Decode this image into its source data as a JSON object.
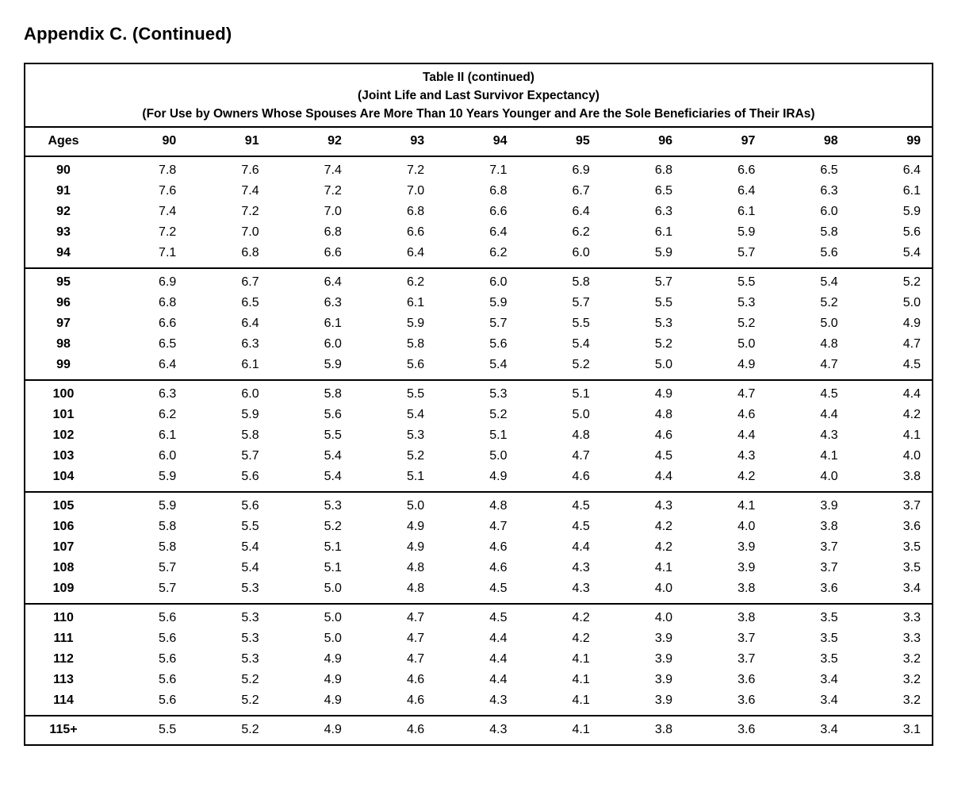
{
  "page_title": "Appendix C. (Continued)",
  "colors": {
    "text": "#000000",
    "background": "#ffffff",
    "border": "#000000"
  },
  "table": {
    "title_lines": [
      "Table II (continued)",
      "(Joint Life and Last Survivor Expectancy)",
      "(For Use by Owners Whose Spouses Are More Than 10 Years Younger and Are the Sole Beneficiaries of Their IRAs)"
    ],
    "columns": [
      "Ages",
      "90",
      "91",
      "92",
      "93",
      "94",
      "95",
      "96",
      "97",
      "98",
      "99"
    ],
    "groups": [
      {
        "rows": [
          {
            "age": "90",
            "values": [
              "7.8",
              "7.6",
              "7.4",
              "7.2",
              "7.1",
              "6.9",
              "6.8",
              "6.6",
              "6.5",
              "6.4"
            ]
          },
          {
            "age": "91",
            "values": [
              "7.6",
              "7.4",
              "7.2",
              "7.0",
              "6.8",
              "6.7",
              "6.5",
              "6.4",
              "6.3",
              "6.1"
            ]
          },
          {
            "age": "92",
            "values": [
              "7.4",
              "7.2",
              "7.0",
              "6.8",
              "6.6",
              "6.4",
              "6.3",
              "6.1",
              "6.0",
              "5.9"
            ]
          },
          {
            "age": "93",
            "values": [
              "7.2",
              "7.0",
              "6.8",
              "6.6",
              "6.4",
              "6.2",
              "6.1",
              "5.9",
              "5.8",
              "5.6"
            ]
          },
          {
            "age": "94",
            "values": [
              "7.1",
              "6.8",
              "6.6",
              "6.4",
              "6.2",
              "6.0",
              "5.9",
              "5.7",
              "5.6",
              "5.4"
            ]
          }
        ]
      },
      {
        "rows": [
          {
            "age": "95",
            "values": [
              "6.9",
              "6.7",
              "6.4",
              "6.2",
              "6.0",
              "5.8",
              "5.7",
              "5.5",
              "5.4",
              "5.2"
            ]
          },
          {
            "age": "96",
            "values": [
              "6.8",
              "6.5",
              "6.3",
              "6.1",
              "5.9",
              "5.7",
              "5.5",
              "5.3",
              "5.2",
              "5.0"
            ]
          },
          {
            "age": "97",
            "values": [
              "6.6",
              "6.4",
              "6.1",
              "5.9",
              "5.7",
              "5.5",
              "5.3",
              "5.2",
              "5.0",
              "4.9"
            ]
          },
          {
            "age": "98",
            "values": [
              "6.5",
              "6.3",
              "6.0",
              "5.8",
              "5.6",
              "5.4",
              "5.2",
              "5.0",
              "4.8",
              "4.7"
            ]
          },
          {
            "age": "99",
            "values": [
              "6.4",
              "6.1",
              "5.9",
              "5.6",
              "5.4",
              "5.2",
              "5.0",
              "4.9",
              "4.7",
              "4.5"
            ]
          }
        ]
      },
      {
        "rows": [
          {
            "age": "100",
            "values": [
              "6.3",
              "6.0",
              "5.8",
              "5.5",
              "5.3",
              "5.1",
              "4.9",
              "4.7",
              "4.5",
              "4.4"
            ]
          },
          {
            "age": "101",
            "values": [
              "6.2",
              "5.9",
              "5.6",
              "5.4",
              "5.2",
              "5.0",
              "4.8",
              "4.6",
              "4.4",
              "4.2"
            ]
          },
          {
            "age": "102",
            "values": [
              "6.1",
              "5.8",
              "5.5",
              "5.3",
              "5.1",
              "4.8",
              "4.6",
              "4.4",
              "4.3",
              "4.1"
            ]
          },
          {
            "age": "103",
            "values": [
              "6.0",
              "5.7",
              "5.4",
              "5.2",
              "5.0",
              "4.7",
              "4.5",
              "4.3",
              "4.1",
              "4.0"
            ]
          },
          {
            "age": "104",
            "values": [
              "5.9",
              "5.6",
              "5.4",
              "5.1",
              "4.9",
              "4.6",
              "4.4",
              "4.2",
              "4.0",
              "3.8"
            ]
          }
        ]
      },
      {
        "rows": [
          {
            "age": "105",
            "values": [
              "5.9",
              "5.6",
              "5.3",
              "5.0",
              "4.8",
              "4.5",
              "4.3",
              "4.1",
              "3.9",
              "3.7"
            ]
          },
          {
            "age": "106",
            "values": [
              "5.8",
              "5.5",
              "5.2",
              "4.9",
              "4.7",
              "4.5",
              "4.2",
              "4.0",
              "3.8",
              "3.6"
            ]
          },
          {
            "age": "107",
            "values": [
              "5.8",
              "5.4",
              "5.1",
              "4.9",
              "4.6",
              "4.4",
              "4.2",
              "3.9",
              "3.7",
              "3.5"
            ]
          },
          {
            "age": "108",
            "values": [
              "5.7",
              "5.4",
              "5.1",
              "4.8",
              "4.6",
              "4.3",
              "4.1",
              "3.9",
              "3.7",
              "3.5"
            ]
          },
          {
            "age": "109",
            "values": [
              "5.7",
              "5.3",
              "5.0",
              "4.8",
              "4.5",
              "4.3",
              "4.0",
              "3.8",
              "3.6",
              "3.4"
            ]
          }
        ]
      },
      {
        "rows": [
          {
            "age": "110",
            "values": [
              "5.6",
              "5.3",
              "5.0",
              "4.7",
              "4.5",
              "4.2",
              "4.0",
              "3.8",
              "3.5",
              "3.3"
            ]
          },
          {
            "age": "111",
            "values": [
              "5.6",
              "5.3",
              "5.0",
              "4.7",
              "4.4",
              "4.2",
              "3.9",
              "3.7",
              "3.5",
              "3.3"
            ]
          },
          {
            "age": "112",
            "values": [
              "5.6",
              "5.3",
              "4.9",
              "4.7",
              "4.4",
              "4.1",
              "3.9",
              "3.7",
              "3.5",
              "3.2"
            ]
          },
          {
            "age": "113",
            "values": [
              "5.6",
              "5.2",
              "4.9",
              "4.6",
              "4.4",
              "4.1",
              "3.9",
              "3.6",
              "3.4",
              "3.2"
            ]
          },
          {
            "age": "114",
            "values": [
              "5.6",
              "5.2",
              "4.9",
              "4.6",
              "4.3",
              "4.1",
              "3.9",
              "3.6",
              "3.4",
              "3.2"
            ]
          }
        ]
      },
      {
        "rows": [
          {
            "age": "115+",
            "values": [
              "5.5",
              "5.2",
              "4.9",
              "4.6",
              "4.3",
              "4.1",
              "3.8",
              "3.6",
              "3.4",
              "3.1"
            ]
          }
        ]
      }
    ]
  }
}
